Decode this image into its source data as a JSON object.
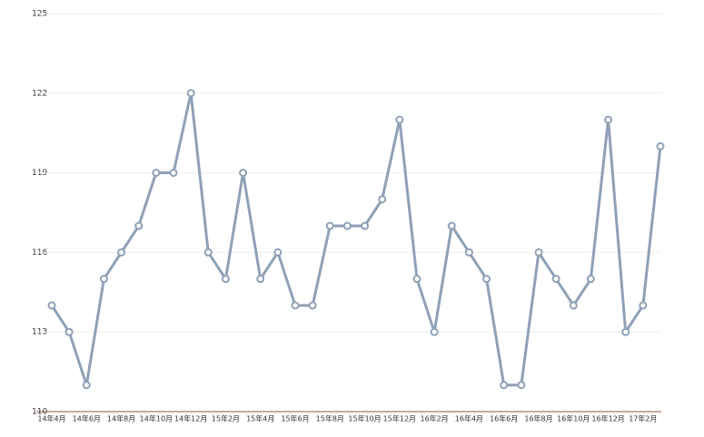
{
  "chart_data": {
    "type": "line",
    "categories": [
      "14年4月",
      null,
      "14年6月",
      null,
      "14年8月",
      null,
      "14年10月",
      null,
      "14年12月",
      null,
      "15年2月",
      null,
      "15年4月",
      null,
      "15年6月",
      null,
      "15年8月",
      null,
      "15年10月",
      null,
      "15年12月",
      null,
      "16年2月",
      null,
      "16年4月",
      null,
      "16年6月",
      null,
      "16年8月",
      null,
      "16年10月",
      null,
      "16年12月",
      null,
      "17年2月",
      null
    ],
    "series": [
      {
        "color": "#8fa1b6",
        "values": [
          114,
          113,
          111,
          115,
          116,
          117,
          119,
          119,
          122,
          116,
          115,
          119,
          115,
          116,
          114,
          114,
          117,
          117,
          117,
          118,
          121,
          115,
          113,
          117,
          116,
          115,
          111,
          111,
          116,
          115,
          114,
          115,
          121,
          113,
          114,
          120
        ]
      }
    ],
    "ylim": [
      110,
      125
    ],
    "yticks": [
      110,
      113,
      116,
      119,
      122,
      125
    ],
    "grid": true
  }
}
